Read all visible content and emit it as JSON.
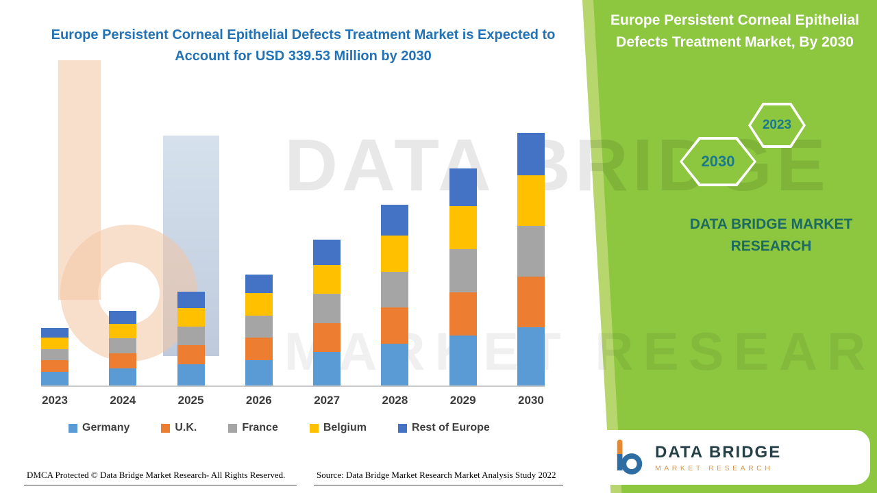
{
  "page": {
    "main_title": "Europe Persistent Corneal Epithelial Defects Treatment Market is Expected to Account for USD 339.53 Million by 2030",
    "footer_left": "DMCA Protected © Data Bridge Market Research- All Rights Reserved.",
    "footer_source": "Source: Data Bridge Market Research Market Analysis Study 2022"
  },
  "side_panel": {
    "title": "Europe Persistent Corneal Epithelial Defects Treatment Market, By 2030",
    "hexagon_front": "2030",
    "hexagon_back": "2023",
    "brand_name": "DATA BRIDGE MARKET RESEARCH",
    "background_color": "#8DC63F",
    "accent_light": "#B7D76E"
  },
  "watermark": {
    "line1": "DATA BRIDGE",
    "line2": "MARKET RESEARCH"
  },
  "logo_card": {
    "name_line1": "DATA BRIDGE",
    "name_line2": "MARKET RESEARCH"
  },
  "colors": {
    "title_blue": "#2272B5",
    "panel_green": "#8DC63F",
    "hexagon_text_teal": "#1A7A8C"
  },
  "chart_data": {
    "type": "bar",
    "subtype": "stacked",
    "unit": "USD Million",
    "categories": [
      "2023",
      "2024",
      "2025",
      "2026",
      "2027",
      "2028",
      "2029",
      "2030"
    ],
    "series": [
      {
        "name": "Germany",
        "color": "#5B9BD5",
        "values": [
          18,
          23,
          29,
          34,
          45,
          56,
          67,
          78
        ]
      },
      {
        "name": "U.K.",
        "color": "#ED7D31",
        "values": [
          16,
          20,
          25,
          30,
          39,
          49,
          58,
          68
        ]
      },
      {
        "name": "France",
        "color": "#A5A5A5",
        "values": [
          15,
          20,
          25,
          30,
          39,
          48,
          58,
          68
        ]
      },
      {
        "name": "Belgium",
        "color": "#FFC000",
        "values": [
          15,
          20,
          25,
          30,
          39,
          48,
          58,
          68
        ]
      },
      {
        "name": "Rest of Europe",
        "color": "#4472C4",
        "values": [
          13,
          17,
          22,
          25,
          34,
          42,
          50,
          57.53
        ]
      }
    ],
    "totals": [
      77,
      100,
      126,
      149,
      196,
      243,
      291,
      339.53
    ],
    "title": "Europe Persistent Corneal Epithelial Defects Treatment Market is Expected to Account for USD 339.53 Million by 2030",
    "xlabel": "",
    "ylabel": "",
    "ylim": [
      0,
      400
    ],
    "grid": false,
    "y_axis_visible": false,
    "legend_position": "bottom"
  }
}
